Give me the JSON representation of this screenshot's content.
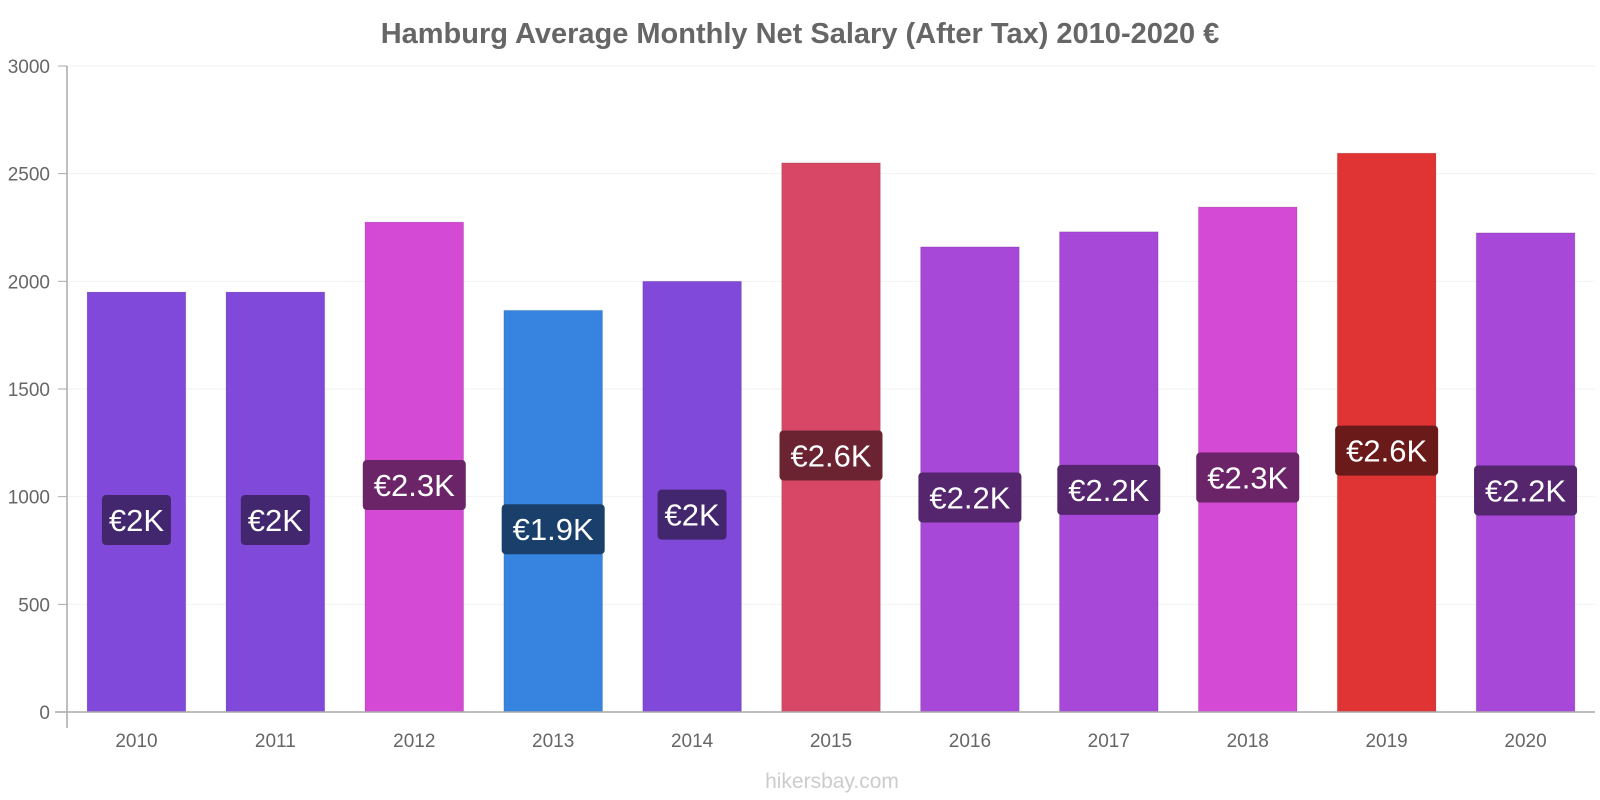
{
  "chart_data": {
    "type": "bar",
    "title": "Hamburg Average Monthly Net Salary (After Tax) 2010-2020 €",
    "xlabel": "",
    "ylabel": "",
    "ylim": [
      0,
      3000
    ],
    "yticks": [
      0,
      500,
      1000,
      1500,
      2000,
      2500,
      3000
    ],
    "grid": true,
    "legend": "none",
    "categories": [
      "2010",
      "2011",
      "2012",
      "2013",
      "2014",
      "2015",
      "2016",
      "2017",
      "2018",
      "2019",
      "2020"
    ],
    "values": [
      1950,
      1950,
      2275,
      1865,
      2000,
      2550,
      2160,
      2230,
      2345,
      2595,
      2225
    ],
    "data_labels": [
      "€2K",
      "€2K",
      "€2.3K",
      "€1.9K",
      "€2K",
      "€2.6K",
      "€2.2K",
      "€2.2K",
      "€2.3K",
      "€2.6K",
      "€2.2K"
    ],
    "bar_colors": [
      "#8049d9",
      "#8049d9",
      "#d54ad4",
      "#3784e0",
      "#8049d9",
      "#d84866",
      "#a848d9",
      "#a848d9",
      "#d54ad4",
      "#e03434",
      "#a848d9"
    ],
    "label_box_colors": [
      "#43276e",
      "#43276e",
      "#6b2468",
      "#1a3f6b",
      "#43276e",
      "#6b2332",
      "#55256e",
      "#55256e",
      "#6b2468",
      "#6b1a1a",
      "#55256e"
    ]
  },
  "footer": {
    "credit": "hikersbay.com"
  }
}
